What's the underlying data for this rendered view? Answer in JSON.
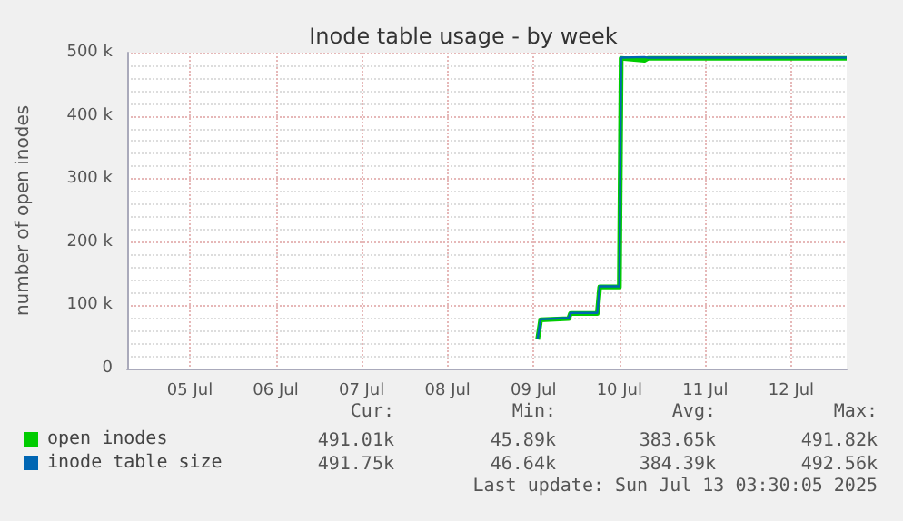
{
  "chart_data": {
    "type": "line",
    "title": "Inode table usage - by week",
    "ylabel": "number of open inodes",
    "x": [
      "2025-07-09T13:10",
      "2025-07-09T14:00",
      "2025-07-09T21:50",
      "2025-07-09T22:20",
      "2025-07-10T05:50",
      "2025-07-10T06:30",
      "2025-07-10T12:00",
      "2025-07-10T12:30",
      "2025-07-10T19:00",
      "2025-07-10T20:00",
      "2025-07-13T03:30"
    ],
    "series": [
      {
        "name": "open inodes",
        "color": "#00cc00",
        "values": [
          46000,
          77000,
          79000,
          87000,
          87000,
          129000,
          129000,
          491000,
          488000,
          491000,
          491000
        ]
      },
      {
        "name": "inode table size",
        "color": "#0066b3",
        "values": [
          47000,
          78000,
          80000,
          88000,
          88000,
          130000,
          130000,
          492000,
          493000,
          492000,
          492000
        ]
      }
    ],
    "xlim": [
      "2025-07-04T18:30",
      "2025-07-13T03:30"
    ],
    "xticks": [
      {
        "value": "2025-07-05T12:00",
        "label": "05 Jul"
      },
      {
        "value": "2025-07-06T12:00",
        "label": "06 Jul"
      },
      {
        "value": "2025-07-07T12:00",
        "label": "07 Jul"
      },
      {
        "value": "2025-07-08T12:00",
        "label": "08 Jul"
      },
      {
        "value": "2025-07-09T12:00",
        "label": "09 Jul"
      },
      {
        "value": "2025-07-10T12:00",
        "label": "10 Jul"
      },
      {
        "value": "2025-07-11T12:00",
        "label": "11 Jul"
      },
      {
        "value": "2025-07-12T12:00",
        "label": "12 Jul"
      }
    ],
    "ylim": [
      0,
      500000
    ],
    "yticks": [
      0,
      {
        "value": 100000,
        "label": "100 k"
      },
      {
        "value": 200000,
        "label": "200 k"
      },
      {
        "value": 300000,
        "label": "300 k"
      },
      {
        "value": 400000,
        "label": "400 k"
      },
      {
        "value": 500000,
        "label": "500 k"
      }
    ],
    "grid": true,
    "legend": "bottom left",
    "marker": "none",
    "annotations": [
      "Cur:",
      "Min:",
      "Avg:",
      "Max:",
      "491.01k",
      "45.89k",
      "383.65k",
      "491.82k",
      "491.75k",
      "46.64k",
      "384.39k",
      "492.56k",
      "Last update: Sun Jul 13 03:30:05 2025"
    ]
  }
}
